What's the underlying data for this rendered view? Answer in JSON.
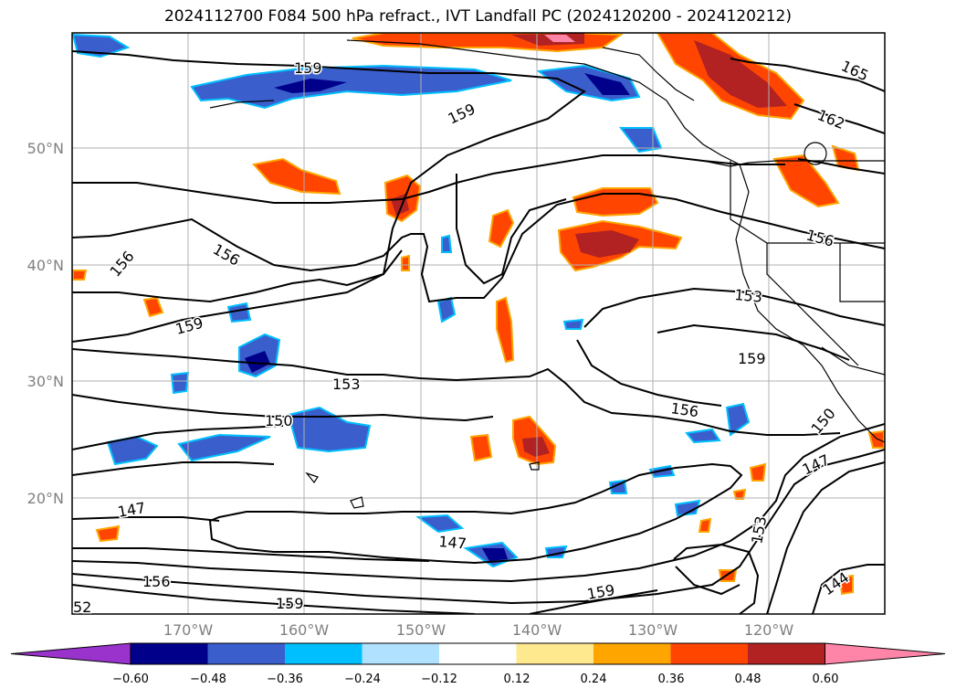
{
  "title": "2024112700 F084 500 hPa refract., IVT Landfall PC (2024120200 - 2024120212)",
  "lat_labels": [
    "50°N",
    "40°N",
    "30°N",
    "20°N"
  ],
  "lon_labels": [
    "170°W",
    "160°W",
    "150°W",
    "140°W",
    "130°W",
    "120°W"
  ],
  "contour_labels": [
    "159",
    "159",
    "165",
    "162",
    "156",
    "156",
    "156",
    "153",
    "159",
    "159",
    "153",
    "150",
    "156",
    "150",
    "147",
    "147",
    "147",
    "156",
    "159",
    "159",
    "153",
    "144",
    "52"
  ],
  "colorbar": {
    "ticks": [
      "−0.60",
      "−0.48",
      "−0.36",
      "−0.24",
      "−0.12",
      "0.12",
      "0.24",
      "0.36",
      "0.48",
      "0.60"
    ],
    "colors": [
      "#9933cc",
      "#00008b",
      "#3a5fcd",
      "#00bfff",
      "#b0e2ff",
      "#ffffff",
      "#ffe98f",
      "#ffa500",
      "#ff4500",
      "#b22222",
      "#ff85a8"
    ]
  },
  "fill_colors": {
    "neg_dark": "#00008b",
    "neg_mid": "#3a5fcd",
    "neg_light": "#00bfff",
    "neg_pale": "#b0e2ff",
    "pos_pale": "#ffe98f",
    "pos_light": "#ffa500",
    "pos_mid": "#ff4500",
    "pos_dark": "#b22222",
    "pos_max": "#ff85a8"
  }
}
